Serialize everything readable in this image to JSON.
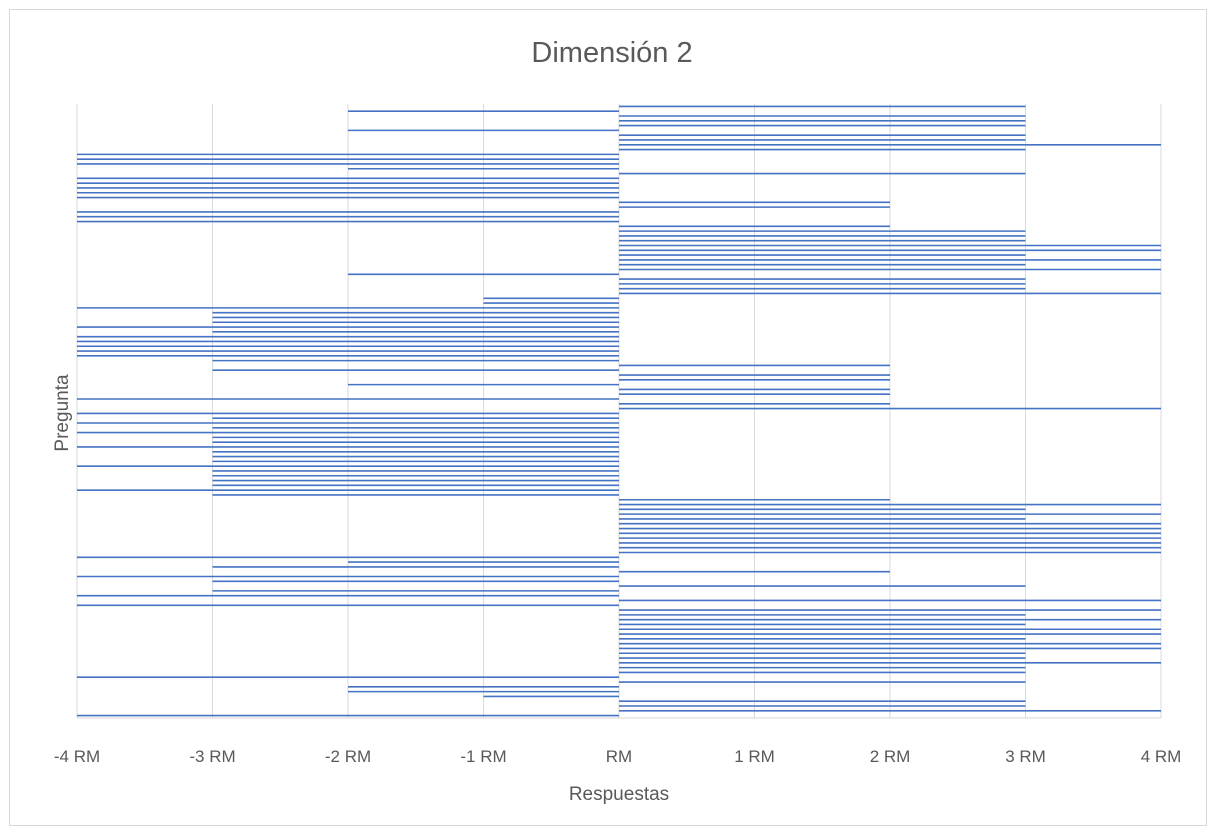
{
  "chart_data": {
    "type": "bar",
    "orientation": "horizontal",
    "title": "Dimensión 2",
    "xlabel": "Respuestas",
    "ylabel": "Pregunta",
    "xlim": [
      -4,
      4
    ],
    "x_tick_labels": [
      "-4 RM",
      "-3 RM",
      "-2 RM",
      "-1 RM",
      "RM",
      "1 RM",
      "2 RM",
      "3 RM",
      "4 RM"
    ],
    "x_ticks": [
      -4,
      -3,
      -2,
      -1,
      0,
      1,
      2,
      3,
      4
    ],
    "grid": "vertical",
    "legend": "none",
    "bar_color": "#4472c4",
    "values": [
      3,
      -2,
      3,
      3,
      3,
      -2,
      3,
      3,
      4,
      3,
      -4,
      -4,
      -4,
      -2,
      3,
      -4,
      -4,
      -4,
      -4,
      -4,
      2,
      2,
      -4,
      -4,
      -4,
      2,
      3,
      3,
      3,
      4,
      4,
      3,
      4,
      3,
      4,
      -2,
      3,
      3,
      3,
      4,
      -1,
      -1,
      -4,
      -3,
      -3,
      -3,
      -4,
      -3,
      -4,
      -4,
      -4,
      -4,
      -4,
      -3,
      2,
      -3,
      2,
      2,
      -2,
      2,
      2,
      -4,
      2,
      4,
      -4,
      -3,
      -4,
      -3,
      -4,
      -3,
      -3,
      -4,
      -3,
      -3,
      -3,
      -4,
      -3,
      -3,
      -3,
      -3,
      -4,
      -3,
      2,
      4,
      3,
      4,
      3,
      4,
      4,
      4,
      4,
      4,
      4,
      4,
      -4,
      -2,
      -3,
      2,
      -4,
      -3,
      3,
      -3,
      -4,
      4,
      -4,
      4,
      3,
      4,
      3,
      4,
      4,
      3,
      4,
      4,
      3,
      3,
      4,
      3,
      3,
      -4,
      3,
      -2,
      -2,
      -1,
      3,
      3,
      4,
      -4
    ]
  }
}
